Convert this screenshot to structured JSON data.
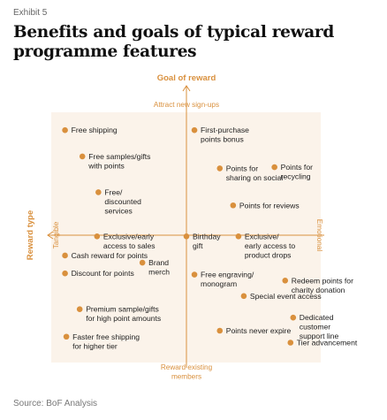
{
  "header": {
    "exhibit": "Exhibit 5",
    "title": "Benefits and goals of typical reward programme features"
  },
  "source": "Source: BoF Analysis",
  "colors": {
    "accent": "#d9903d",
    "quadrant": "#fbf3ea",
    "text": "#222222"
  },
  "chart_data": {
    "type": "scatter",
    "title": "",
    "x_axis": {
      "title": "Reward type",
      "low_label": "Tangible",
      "high_label": "Emotional",
      "range": [
        -10,
        10
      ]
    },
    "y_axis": {
      "title": "Goal of reward",
      "high_label": "Attract new sign-ups",
      "low_label": "Reward existing members",
      "range": [
        -10,
        10
      ]
    },
    "points": [
      {
        "label": [
          "Free shipping"
        ],
        "x": -9.1,
        "y": 8.8
      },
      {
        "label": [
          "First-purchase",
          "points bonus"
        ],
        "x": 0.6,
        "y": 8.8
      },
      {
        "label": [
          "Free samples/gifts",
          "with points"
        ],
        "x": -7.8,
        "y": 6.6
      },
      {
        "label": [
          "Points for",
          "sharing on social"
        ],
        "x": 2.5,
        "y": 5.6
      },
      {
        "label": [
          "Points for",
          "recycling"
        ],
        "x": 6.6,
        "y": 5.7
      },
      {
        "label": [
          "Free/",
          "discounted",
          "services"
        ],
        "x": -6.6,
        "y": 3.6
      },
      {
        "label": [
          "Points for reviews"
        ],
        "x": 3.5,
        "y": 2.5
      },
      {
        "label": [
          "Exclusive/early",
          "access to sales"
        ],
        "x": -6.7,
        "y": -0.1
      },
      {
        "label": [
          "Birthday",
          "gift"
        ],
        "x": 0.0,
        "y": -0.1
      },
      {
        "label": [
          "Exclusive/",
          "early access to",
          "product drops"
        ],
        "x": 3.9,
        "y": -0.1
      },
      {
        "label": [
          "Cash reward for points"
        ],
        "x": -9.1,
        "y": -1.7
      },
      {
        "label": [
          "Brand",
          "merch"
        ],
        "x": -3.3,
        "y": -2.3
      },
      {
        "label": [
          "Discount for points"
        ],
        "x": -9.1,
        "y": -3.2
      },
      {
        "label": [
          "Free engraving/",
          "monogram"
        ],
        "x": 0.6,
        "y": -3.3
      },
      {
        "label": [
          "Redeem points for",
          "charity donation"
        ],
        "x": 7.4,
        "y": -3.8
      },
      {
        "label": [
          "Special event access"
        ],
        "x": 4.3,
        "y": -5.1
      },
      {
        "label": [
          "Premium sample/gifts",
          "for high point amounts"
        ],
        "x": -8.0,
        "y": -6.2
      },
      {
        "label": [
          "Dedicated",
          "customer",
          "support line"
        ],
        "x": 8.0,
        "y": -6.9
      },
      {
        "label": [
          "Points never expire"
        ],
        "x": 2.5,
        "y": -8.0
      },
      {
        "label": [
          "Faster free shipping",
          "for higher tier"
        ],
        "x": -9.0,
        "y": -8.5
      },
      {
        "label": [
          "Tier advancement"
        ],
        "x": 7.8,
        "y": -9.0
      }
    ]
  }
}
